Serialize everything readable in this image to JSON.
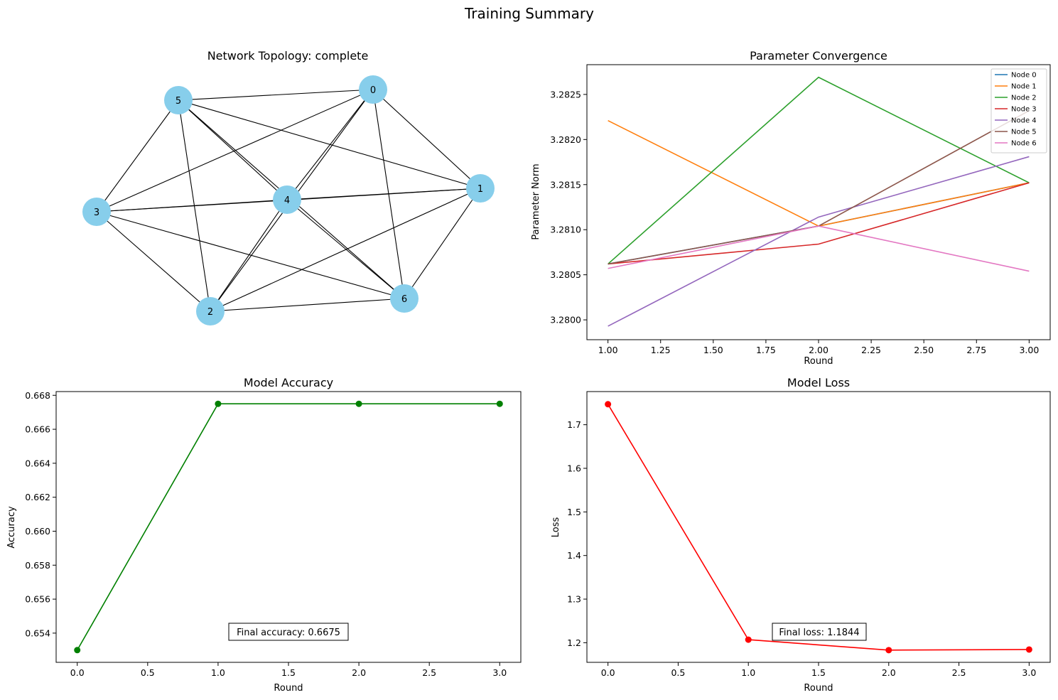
{
  "figure": {
    "title": "Training Summary"
  },
  "colors": {
    "node_fill": "#87ceeb",
    "edge": "#000000",
    "accuracy": "#008000",
    "loss": "#ff0000",
    "series": [
      "#1f77b4",
      "#ff7f0e",
      "#2ca02c",
      "#d62728",
      "#9467bd",
      "#8c564b",
      "#e377c2"
    ]
  },
  "chart_data": [
    {
      "type": "network",
      "title": "Network Topology: complete",
      "nodes": [
        "0",
        "1",
        "2",
        "3",
        "4",
        "5",
        "6"
      ],
      "edges": "complete"
    },
    {
      "type": "line",
      "title": "Parameter Convergence",
      "xlabel": "Round",
      "ylabel": "Parameter Norm",
      "x": [
        1,
        2,
        3
      ],
      "xlim": [
        0.9,
        3.1
      ],
      "ylim": [
        3.27978,
        3.28283
      ],
      "xticks": [
        "1.00",
        "1.25",
        "1.50",
        "1.75",
        "2.00",
        "2.25",
        "2.50",
        "2.75",
        "3.00"
      ],
      "yticks": [
        "3.2800",
        "3.2805",
        "3.2810",
        "3.2815",
        "3.2820",
        "3.2825"
      ],
      "legend": "top-right",
      "series": [
        {
          "name": "Node 0",
          "values": [
            3.28062,
            3.28104,
            3.28152
          ]
        },
        {
          "name": "Node 1",
          "values": [
            3.28221,
            3.28104,
            3.28152
          ]
        },
        {
          "name": "Node 2",
          "values": [
            3.28062,
            3.28269,
            3.28152
          ]
        },
        {
          "name": "Node 3",
          "values": [
            3.28062,
            3.28084,
            3.28152
          ]
        },
        {
          "name": "Node 4",
          "values": [
            3.27993,
            3.28114,
            3.28181
          ]
        },
        {
          "name": "Node 5",
          "values": [
            3.28062,
            3.28104,
            3.28232
          ]
        },
        {
          "name": "Node 6",
          "values": [
            3.28057,
            3.28104,
            3.28054
          ]
        }
      ]
    },
    {
      "type": "line",
      "title": "Model Accuracy",
      "xlabel": "Round",
      "ylabel": "Accuracy",
      "x": [
        0,
        1,
        2,
        3
      ],
      "values": [
        0.653,
        0.6675,
        0.6675,
        0.6675
      ],
      "xlim": [
        -0.15,
        3.15
      ],
      "ylim": [
        0.65228,
        0.66822
      ],
      "xticks": [
        "0.0",
        "0.5",
        "1.0",
        "1.5",
        "2.0",
        "2.5",
        "3.0"
      ],
      "yticks": [
        "0.654",
        "0.656",
        "0.658",
        "0.660",
        "0.662",
        "0.664",
        "0.666",
        "0.668"
      ],
      "annotation": "Final accuracy: 0.6675"
    },
    {
      "type": "line",
      "title": "Model Loss",
      "xlabel": "Round",
      "ylabel": "Loss",
      "x": [
        0,
        1,
        2,
        3
      ],
      "values": [
        1.747,
        1.207,
        1.183,
        1.1844
      ],
      "xlim": [
        -0.15,
        3.15
      ],
      "ylim": [
        1.155,
        1.776
      ],
      "xticks": [
        "0.0",
        "0.5",
        "1.0",
        "1.5",
        "2.0",
        "2.5",
        "3.0"
      ],
      "yticks": [
        "1.2",
        "1.3",
        "1.4",
        "1.5",
        "1.6",
        "1.7"
      ],
      "annotation": "Final loss: 1.1844"
    }
  ]
}
